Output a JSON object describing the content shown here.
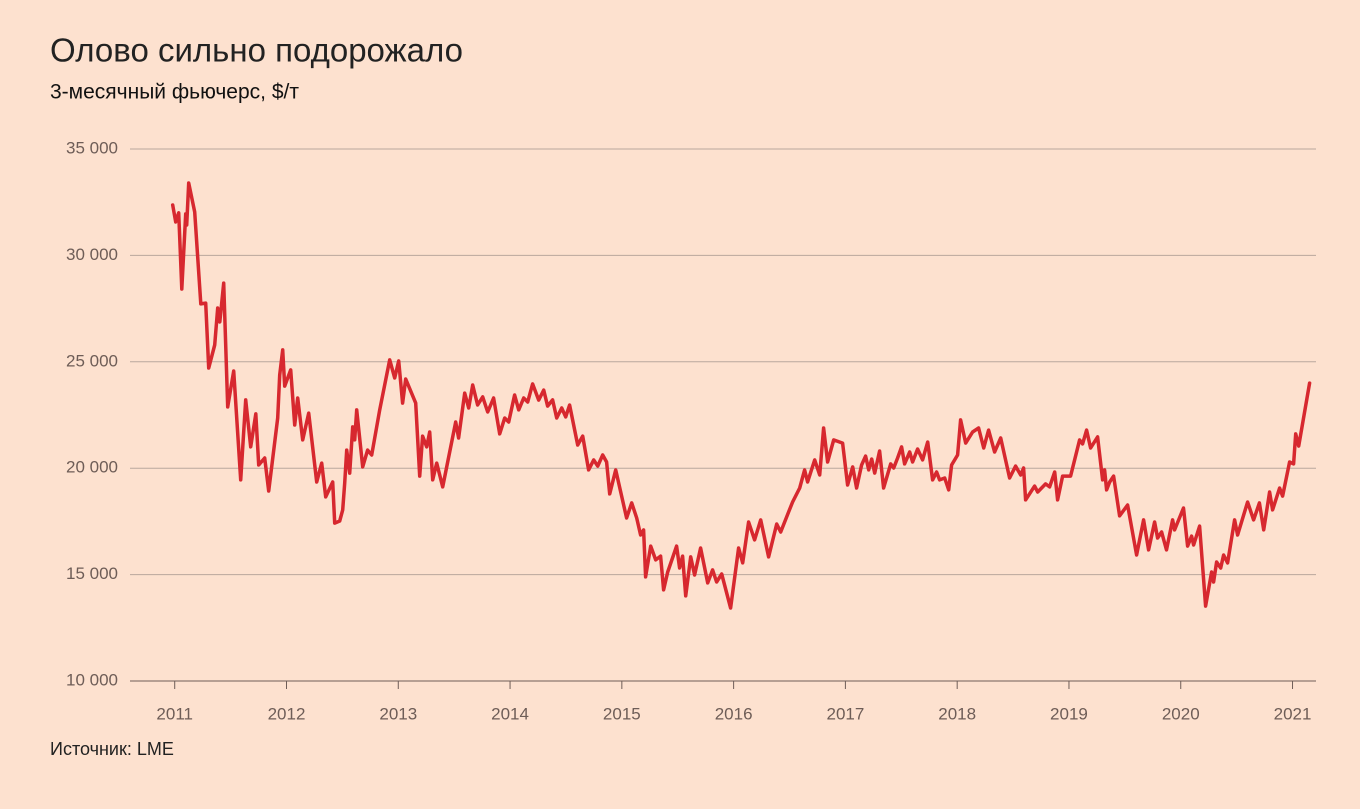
{
  "chart_data": {
    "type": "line",
    "title": "Олово сильно подорожало",
    "subtitle": "3-месячный фьючерс, $/т",
    "source": "Источник: LME",
    "color": "#d7282f",
    "grid": true,
    "xlim": [
      2010.6,
      2021.21
    ],
    "xticks": [
      2011,
      2012,
      2013,
      2014,
      2015,
      2016,
      2017,
      2018,
      2019,
      2020,
      2021
    ],
    "ylim": [
      10000,
      35000
    ],
    "yticks": [
      {
        "value": 10000,
        "label": "10 000"
      },
      {
        "value": 15000,
        "label": "15 000"
      },
      {
        "value": 20000,
        "label": "20 000"
      },
      {
        "value": 25000,
        "label": "25 000"
      },
      {
        "value": 30000,
        "label": "30 000"
      },
      {
        "value": 35000,
        "label": "35 000"
      }
    ],
    "x": [
      2010.982,
      2011.009,
      2011.036,
      2011.063,
      2011.098,
      2011.107,
      2011.125,
      2011.179,
      2011.233,
      2011.277,
      2011.304,
      2011.358,
      2011.385,
      2011.403,
      2011.438,
      2011.474,
      2011.528,
      2011.59,
      2011.635,
      2011.68,
      2011.725,
      2011.751,
      2011.805,
      2011.841,
      2011.921,
      2011.939,
      2011.966,
      2011.984,
      2012.038,
      2012.073,
      2012.1,
      2012.145,
      2012.199,
      2012.27,
      2012.315,
      2012.351,
      2012.413,
      2012.431,
      2012.476,
      2012.503,
      2012.521,
      2012.539,
      2012.565,
      2012.592,
      2012.61,
      2012.628,
      2012.682,
      2012.726,
      2012.762,
      2012.834,
      2012.923,
      2012.968,
      2013.004,
      2013.039,
      2013.066,
      2013.156,
      2013.192,
      2013.218,
      2013.254,
      2013.281,
      2013.308,
      2013.344,
      2013.397,
      2013.514,
      2013.54,
      2013.594,
      2013.63,
      2013.666,
      2013.71,
      2013.755,
      2013.8,
      2013.853,
      2013.907,
      2013.952,
      2013.988,
      2014.041,
      2014.077,
      2014.122,
      2014.158,
      2014.202,
      2014.256,
      2014.301,
      2014.336,
      2014.381,
      2014.417,
      2014.462,
      2014.498,
      2014.533,
      2014.605,
      2014.65,
      2014.703,
      2014.748,
      2014.784,
      2014.829,
      2014.864,
      2014.891,
      2014.945,
      2015.043,
      2015.088,
      2015.133,
      2015.168,
      2015.195,
      2015.213,
      2015.258,
      2015.303,
      2015.347,
      2015.374,
      2015.41,
      2015.49,
      2015.517,
      2015.544,
      2015.571,
      2015.616,
      2015.651,
      2015.705,
      2015.768,
      2015.812,
      2015.848,
      2015.893,
      2015.973,
      2016.045,
      2016.081,
      2016.134,
      2016.188,
      2016.242,
      2016.313,
      2016.385,
      2016.421,
      2016.492,
      2016.528,
      2016.591,
      2016.635,
      2016.662,
      2016.725,
      2016.77,
      2016.805,
      2016.841,
      2016.895,
      2016.975,
      2017.02,
      2017.065,
      2017.1,
      2017.145,
      2017.181,
      2017.208,
      2017.235,
      2017.262,
      2017.306,
      2017.342,
      2017.405,
      2017.432,
      2017.467,
      2017.503,
      2017.53,
      2017.575,
      2017.601,
      2017.646,
      2017.691,
      2017.736,
      2017.78,
      2017.816,
      2017.843,
      2017.888,
      2017.924,
      2017.95,
      2018.004,
      2018.031,
      2018.076,
      2018.138,
      2018.192,
      2018.237,
      2018.281,
      2018.335,
      2018.389,
      2018.469,
      2018.523,
      2018.568,
      2018.594,
      2018.612,
      2018.693,
      2018.72,
      2018.791,
      2018.827,
      2018.872,
      2018.898,
      2018.943,
      2019.015,
      2019.095,
      2019.122,
      2019.158,
      2019.194,
      2019.256,
      2019.301,
      2019.319,
      2019.337,
      2019.364,
      2019.399,
      2019.453,
      2019.525,
      2019.605,
      2019.668,
      2019.712,
      2019.766,
      2019.793,
      2019.829,
      2019.873,
      2019.927,
      2019.945,
      2020.025,
      2020.061,
      2020.097,
      2020.115,
      2020.169,
      2020.222,
      2020.276,
      2020.294,
      2020.321,
      2020.357,
      2020.383,
      2020.419,
      2020.482,
      2020.509,
      2020.598,
      2020.652,
      2020.704,
      2020.742,
      2020.795,
      2020.822,
      2020.884,
      2020.911,
      2020.974,
      2021.01,
      2021.028,
      2021.055,
      2021.153
    ],
    "values": [
      32370,
      31570,
      32000,
      28420,
      31950,
      31430,
      33400,
      32040,
      27720,
      27760,
      24710,
      25790,
      27530,
      26870,
      28700,
      22880,
      24570,
      19450,
      23210,
      21000,
      22550,
      20150,
      20480,
      18930,
      22360,
      24380,
      25560,
      23860,
      24620,
      22030,
      23300,
      21330,
      22590,
      19350,
      20240,
      18650,
      19350,
      17420,
      17520,
      18040,
      19300,
      20850,
      19770,
      21940,
      21330,
      22740,
      20060,
      20850,
      20620,
      22740,
      25090,
      24240,
      25040,
      23060,
      24190,
      23060,
      19630,
      21510,
      21000,
      21700,
      19450,
      20240,
      19120,
      22170,
      21420,
      23530,
      22830,
      23910,
      22970,
      23350,
      22640,
      23300,
      21610,
      22360,
      22170,
      23440,
      22740,
      23300,
      23110,
      23960,
      23200,
      23670,
      22920,
      23210,
      22360,
      22830,
      22410,
      22970,
      21090,
      21510,
      19920,
      20390,
      20100,
      20620,
      20290,
      18790,
      19920,
      17660,
      18370,
      17660,
      16860,
      17100,
      14890,
      16340,
      15690,
      15870,
      14280,
      15120,
      16340,
      15310,
      15870,
      14000,
      15830,
      14980,
      16250,
      14610,
      15220,
      14650,
      15030,
      13430,
      16250,
      15550,
      17470,
      16630,
      17570,
      15830,
      17380,
      17000,
      17940,
      18410,
      19070,
      19920,
      19350,
      20390,
      19680,
      21890,
      20290,
      21330,
      21180,
      19210,
      20060,
      19070,
      20150,
      20570,
      19920,
      20430,
      19770,
      20810,
      19070,
      20200,
      20010,
      20480,
      21000,
      20200,
      20760,
      20290,
      20900,
      20390,
      21230,
      19450,
      19820,
      19450,
      19540,
      18980,
      20150,
      20620,
      22270,
      21180,
      21700,
      21890,
      20950,
      21790,
      20760,
      21420,
      19540,
      20100,
      19680,
      20010,
      18510,
      19160,
      18880,
      19260,
      19120,
      19820,
      18510,
      19630,
      19630,
      21330,
      21140,
      21790,
      20950,
      21470,
      19450,
      19920,
      18980,
      19350,
      19630,
      17760,
      18270,
      15920,
      17570,
      16160,
      17470,
      16720,
      17000,
      16160,
      17570,
      17100,
      18130,
      16340,
      16810,
      16390,
      17280,
      13520,
      15120,
      14650,
      15590,
      15310,
      15920,
      15550,
      17570,
      16860,
      18410,
      17570,
      18370,
      17100,
      18880,
      18040,
      19070,
      18690,
      20290,
      20200,
      21610,
      21040,
      24000
    ]
  }
}
